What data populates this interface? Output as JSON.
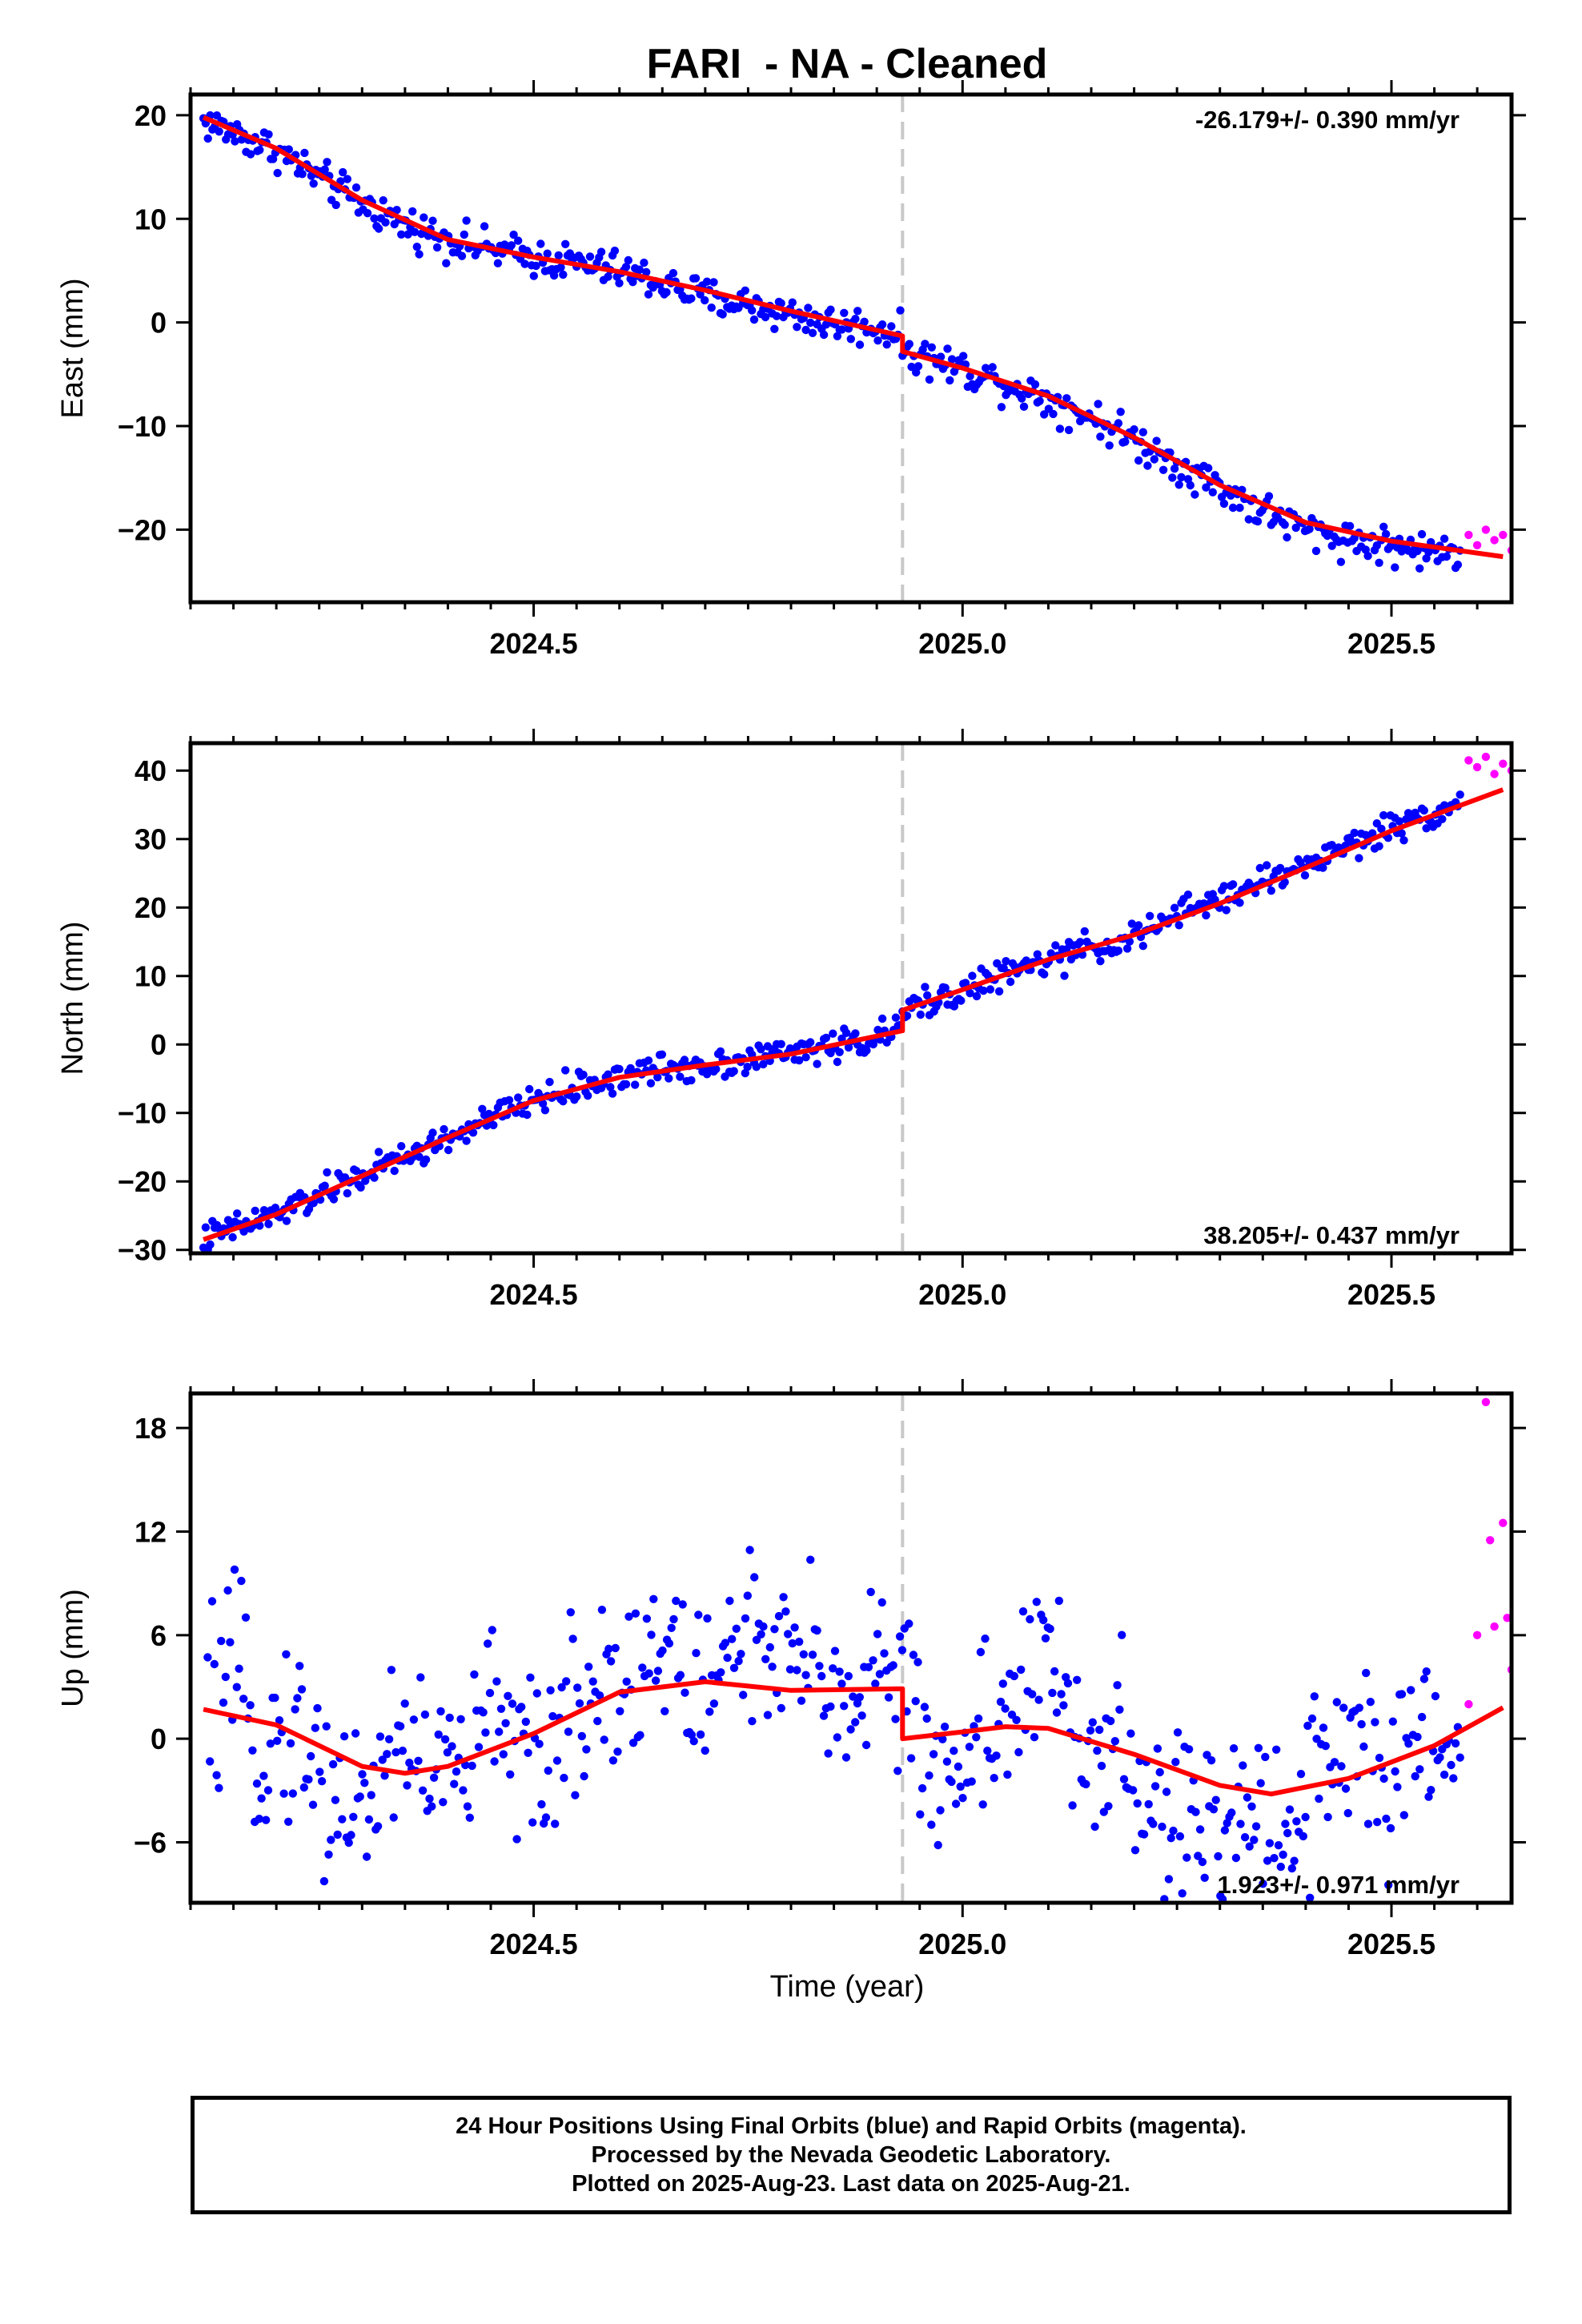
{
  "title": "FARI  - NA - Cleaned",
  "xlabel": "Time (year)",
  "x_ticks": [
    "2024.5",
    "2025.0",
    "2025.5"
  ],
  "footer": {
    "line1": "24 Hour Positions Using Final Orbits (blue) and Rapid Orbits (magenta).",
    "line2": "Processed by the Nevada Geodetic Laboratory.",
    "line3": "Plotted on 2025-Aug-23. Last data on 2025-Aug-21."
  },
  "colors": {
    "final_orbits": "#0000ff",
    "rapid_orbits": "#ff00ff",
    "model": "#ff0000",
    "event_line": "#c8c8c8"
  },
  "chart_data": [
    {
      "type": "scatter",
      "ylabel": "East (mm)",
      "rate_text": "-26.179+/- 0.390 mm/yr",
      "rate_position": "top-right",
      "xlim": [
        2024.1,
        2025.64
      ],
      "ylim": [
        -27,
        22
      ],
      "y_ticks": [
        20,
        10,
        0,
        -10,
        -20
      ],
      "event_x": 2024.93,
      "model_x": [
        2024.115,
        2024.2,
        2024.3,
        2024.4,
        2024.5,
        2024.6,
        2024.7,
        2024.8,
        2024.93,
        2024.93,
        2025.0,
        2025.1,
        2025.2,
        2025.3,
        2025.4,
        2025.5,
        2025.63
      ],
      "model_y": [
        19.8,
        16.8,
        11.8,
        8.0,
        6.3,
        4.9,
        3.1,
        1.1,
        -1.3,
        -2.8,
        -4.4,
        -7.1,
        -11.1,
        -15.7,
        -19.3,
        -21.1,
        -22.6
      ],
      "final_x": [
        2024.115,
        2024.15,
        2024.2,
        2024.25,
        2024.3,
        2024.35,
        2024.4,
        2024.45,
        2024.5,
        2024.55,
        2024.6,
        2024.65,
        2024.7,
        2024.75,
        2024.8,
        2024.85,
        2024.9,
        2024.925,
        2024.935,
        2024.95,
        2025.0,
        2025.05,
        2025.1,
        2025.15,
        2025.2,
        2025.25,
        2025.3,
        2025.35,
        2025.4,
        2025.45,
        2025.5,
        2025.55,
        2025.58
      ],
      "final_y": [
        19.4,
        18.3,
        16.6,
        13.9,
        11.5,
        9.4,
        8.1,
        7.0,
        6.3,
        5.7,
        5.0,
        3.8,
        2.4,
        1.7,
        0.8,
        -0.2,
        -0.5,
        -1.0,
        -2.9,
        -3.2,
        -4.5,
        -5.9,
        -7.4,
        -9.1,
        -11.3,
        -13.6,
        -15.9,
        -18.2,
        -20.0,
        -20.9,
        -21.6,
        -22.2,
        -22.0
      ],
      "rapid_x": [
        2025.59,
        2025.6,
        2025.61,
        2025.62,
        2025.63,
        2025.64
      ],
      "rapid_y": [
        -20.5,
        -21.5,
        -20.0,
        -21.0,
        -20.5,
        -22.0
      ]
    },
    {
      "type": "scatter",
      "ylabel": "North (mm)",
      "rate_text": "38.205+/- 0.437 mm/yr",
      "rate_position": "bottom-right",
      "xlim": [
        2024.1,
        2025.64
      ],
      "ylim": [
        -30.5,
        44
      ],
      "y_ticks": [
        40,
        30,
        20,
        10,
        0,
        -10,
        -20,
        -30
      ],
      "event_x": 2024.93,
      "model_x": [
        2024.115,
        2024.2,
        2024.3,
        2024.4,
        2024.5,
        2024.6,
        2024.7,
        2024.8,
        2024.93,
        2024.93,
        2025.0,
        2025.1,
        2025.2,
        2025.3,
        2025.4,
        2025.5,
        2025.63
      ],
      "model_y": [
        -28.5,
        -24.8,
        -19.2,
        -13.6,
        -8.2,
        -4.8,
        -3.0,
        -1.4,
        2.0,
        5.0,
        8.0,
        12.4,
        16.0,
        20.6,
        25.8,
        31.2,
        37.2
      ],
      "final_x": [
        2024.115,
        2024.15,
        2024.2,
        2024.25,
        2024.3,
        2024.35,
        2024.4,
        2024.45,
        2024.5,
        2024.55,
        2024.6,
        2024.65,
        2024.7,
        2024.75,
        2024.8,
        2024.85,
        2024.9,
        2024.925,
        2024.935,
        2024.95,
        2025.0,
        2025.05,
        2025.1,
        2025.15,
        2025.2,
        2025.25,
        2025.3,
        2025.35,
        2025.4,
        2025.45,
        2025.5,
        2025.55,
        2025.58
      ],
      "final_y": [
        -28.4,
        -26.9,
        -24.9,
        -22.0,
        -19.0,
        -16.6,
        -13.7,
        -11.0,
        -8.1,
        -6.3,
        -4.8,
        -3.6,
        -2.9,
        -2.1,
        -1.2,
        -0.1,
        0.8,
        2.2,
        4.9,
        5.9,
        7.8,
        10.3,
        12.2,
        14.1,
        15.5,
        18.8,
        21.4,
        23.7,
        26.2,
        29.1,
        31.6,
        34.0,
        35.2
      ],
      "rapid_x": [
        2025.59,
        2025.6,
        2025.61,
        2025.62,
        2025.63,
        2025.64
      ],
      "rapid_y": [
        41.5,
        40.5,
        42.0,
        39.5,
        41.0,
        40.0
      ]
    },
    {
      "type": "scatter",
      "ylabel": "Up (mm)",
      "rate_text": "1.923+/- 0.971 mm/yr",
      "rate_position": "bottom-right",
      "xlim": [
        2024.1,
        2025.64
      ],
      "ylim": [
        -9.5,
        20
      ],
      "y_ticks": [
        18,
        12,
        6,
        0,
        -6
      ],
      "event_x": 2024.93,
      "model_x": [
        2024.115,
        2024.2,
        2024.3,
        2024.35,
        2024.4,
        2024.5,
        2024.6,
        2024.7,
        2024.8,
        2024.93,
        2024.93,
        2025.0,
        2025.05,
        2025.1,
        2025.2,
        2025.3,
        2025.36,
        2025.45,
        2025.55,
        2025.63
      ],
      "model_y": [
        1.7,
        0.8,
        -1.6,
        -2.0,
        -1.6,
        0.3,
        2.7,
        3.3,
        2.8,
        2.9,
        0.0,
        0.4,
        0.7,
        0.6,
        -0.9,
        -2.7,
        -3.2,
        -2.3,
        -0.4,
        1.8
      ],
      "final_x": [
        2024.12,
        2024.15,
        2024.18,
        2024.22,
        2024.25,
        2024.28,
        2024.3,
        2024.34,
        2024.38,
        2024.42,
        2024.46,
        2024.5,
        2024.54,
        2024.58,
        2024.62,
        2024.66,
        2024.7,
        2024.74,
        2024.78,
        2024.82,
        2024.86,
        2024.9,
        2024.925,
        2024.94,
        2024.98,
        2025.02,
        2025.06,
        2025.1,
        2025.14,
        2025.18,
        2025.22,
        2025.26,
        2025.3,
        2025.34,
        2025.38,
        2025.42,
        2025.46,
        2025.5,
        2025.54,
        2025.58
      ],
      "final_y": [
        1.2,
        3.5,
        -0.5,
        1.0,
        -2.5,
        -3.0,
        -4.5,
        0.5,
        -1.5,
        -2.0,
        3.0,
        -3.0,
        1.5,
        3.5,
        4.0,
        5.0,
        2.0,
        7.0,
        3.5,
        4.5,
        2.0,
        5.0,
        3.0,
        1.0,
        -2.5,
        0.5,
        2.0,
        4.5,
        -1.0,
        0.0,
        -5.0,
        -4.0,
        -6.5,
        -3.0,
        -5.5,
        -1.0,
        0.5,
        -4.0,
        1.0,
        -2.0
      ],
      "rapid_x": [
        2025.59,
        2025.6,
        2025.61,
        2025.615,
        2025.62,
        2025.63,
        2025.635,
        2025.64
      ],
      "rapid_y": [
        2.0,
        6.0,
        19.5,
        11.5,
        6.5,
        12.5,
        7.0,
        4.0
      ]
    }
  ]
}
